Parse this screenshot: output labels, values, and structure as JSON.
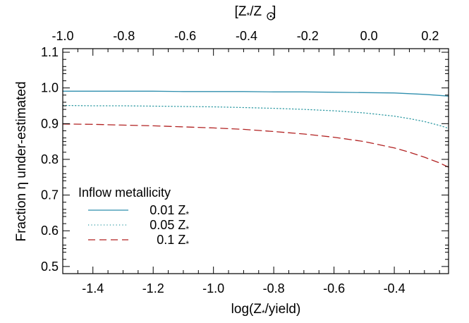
{
  "chart_data": {
    "type": "line",
    "title": "",
    "xlabel": "log(Z",
    "xlabel_sub": "*",
    "xlabel_tail": "/yield)",
    "ylabel": "Fraction η under-estimated",
    "top_xlabel_open": "[Z",
    "top_xlabel_sub1": "*",
    "top_xlabel_mid": "/Z",
    "top_xlabel_close": "]",
    "xlim": [
      -1.5,
      -0.22
    ],
    "ylim": [
      0.48,
      1.11
    ],
    "top_xlim": [
      -1.0,
      0.26
    ],
    "x_ticks": [
      "-1.4",
      "-1.2",
      "-1.0",
      "-0.8",
      "-0.6",
      "-0.4"
    ],
    "x_tick_values": [
      -1.4,
      -1.2,
      -1.0,
      -0.8,
      -0.6,
      -0.4
    ],
    "y_ticks": [
      "0.5",
      "0.6",
      "0.7",
      "0.8",
      "0.9",
      "1.0",
      "1.1"
    ],
    "y_tick_values": [
      0.5,
      0.6,
      0.7,
      0.8,
      0.9,
      1.0,
      1.1
    ],
    "top_ticks": [
      "-1.0",
      "-0.8",
      "-0.6",
      "-0.4",
      "-0.2",
      "0.0",
      "0.2"
    ],
    "top_tick_values": [
      -1.0,
      -0.8,
      -0.6,
      -0.4,
      -0.2,
      0.0,
      0.2
    ],
    "legend_title": "Inflow metallicity",
    "legend_position": "bottom-left",
    "grid": false,
    "series": [
      {
        "name": "0.01 Z",
        "name_sub": "*",
        "color": "#2f8fae",
        "style": "solid",
        "x": [
          -1.5,
          -1.4,
          -1.3,
          -1.2,
          -1.1,
          -1.0,
          -0.9,
          -0.8,
          -0.7,
          -0.6,
          -0.5,
          -0.4,
          -0.35,
          -0.3,
          -0.25,
          -0.22
        ],
        "y": [
          0.991,
          0.991,
          0.991,
          0.991,
          0.99,
          0.99,
          0.99,
          0.989,
          0.989,
          0.988,
          0.987,
          0.986,
          0.984,
          0.982,
          0.979,
          0.977
        ]
      },
      {
        "name": "0.05 Z",
        "name_sub": "*",
        "color": "#2f9aa3",
        "style": "dotted",
        "x": [
          -1.5,
          -1.4,
          -1.3,
          -1.2,
          -1.1,
          -1.0,
          -0.9,
          -0.8,
          -0.7,
          -0.6,
          -0.5,
          -0.4,
          -0.35,
          -0.3,
          -0.25,
          -0.22
        ],
        "y": [
          0.951,
          0.95,
          0.95,
          0.949,
          0.948,
          0.947,
          0.945,
          0.943,
          0.94,
          0.936,
          0.93,
          0.921,
          0.914,
          0.906,
          0.895,
          0.887
        ]
      },
      {
        "name": "0.1 Z",
        "name_sub": "*",
        "color": "#b22222",
        "style": "dashed",
        "x": [
          -1.5,
          -1.4,
          -1.3,
          -1.2,
          -1.1,
          -1.0,
          -0.9,
          -0.8,
          -0.7,
          -0.6,
          -0.5,
          -0.4,
          -0.35,
          -0.3,
          -0.25,
          -0.22
        ],
        "y": [
          0.899,
          0.898,
          0.896,
          0.894,
          0.891,
          0.888,
          0.884,
          0.878,
          0.871,
          0.862,
          0.85,
          0.832,
          0.82,
          0.806,
          0.79,
          0.778
        ]
      }
    ]
  }
}
